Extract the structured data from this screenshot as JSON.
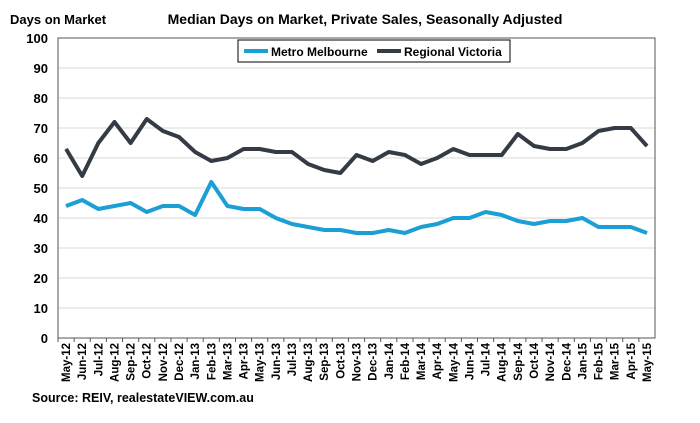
{
  "chart_data": {
    "type": "line",
    "title": "Median Days on Market, Private Sales, Seasonally Adjusted",
    "ylabel": "Days on Market",
    "xlabel": "",
    "source": "Source:  REIV, realestateVIEW.com.au",
    "ylim": [
      0,
      100
    ],
    "yticks": [
      0,
      10,
      20,
      30,
      40,
      50,
      60,
      70,
      80,
      90,
      100
    ],
    "grid": true,
    "legend_position": "top-center",
    "categories": [
      "May-12",
      "Jun-12",
      "Jul-12",
      "Aug-12",
      "Sep-12",
      "Oct-12",
      "Nov-12",
      "Dec-12",
      "Jan-13",
      "Feb-13",
      "Mar-13",
      "Apr-13",
      "May-13",
      "Jun-13",
      "Jul-13",
      "Aug-13",
      "Sep-13",
      "Oct-13",
      "Nov-13",
      "Dec-13",
      "Jan-14",
      "Feb-14",
      "Mar-14",
      "Apr-14",
      "May-14",
      "Jun-14",
      "Jul-14",
      "Aug-14",
      "Sep-14",
      "Oct-14",
      "Nov-14",
      "Dec-14",
      "Jan-15",
      "Feb-15",
      "Mar-15",
      "Apr-15",
      "May-15"
    ],
    "series": [
      {
        "name": "Metro Melbourne",
        "color": "#1b9fd4",
        "values": [
          44,
          46,
          43,
          44,
          45,
          42,
          44,
          44,
          41,
          52,
          44,
          43,
          43,
          40,
          38,
          37,
          36,
          36,
          35,
          35,
          36,
          35,
          37,
          38,
          40,
          40,
          42,
          41,
          39,
          38,
          39,
          39,
          40,
          37,
          37,
          37,
          35
        ]
      },
      {
        "name": "Regional Victoria",
        "color": "#353b45",
        "values": [
          63,
          54,
          65,
          72,
          65,
          73,
          69,
          67,
          62,
          59,
          60,
          63,
          63,
          62,
          62,
          58,
          56,
          55,
          61,
          59,
          62,
          61,
          58,
          60,
          63,
          61,
          61,
          61,
          68,
          64,
          63,
          63,
          65,
          69,
          70,
          70,
          64
        ]
      }
    ]
  }
}
